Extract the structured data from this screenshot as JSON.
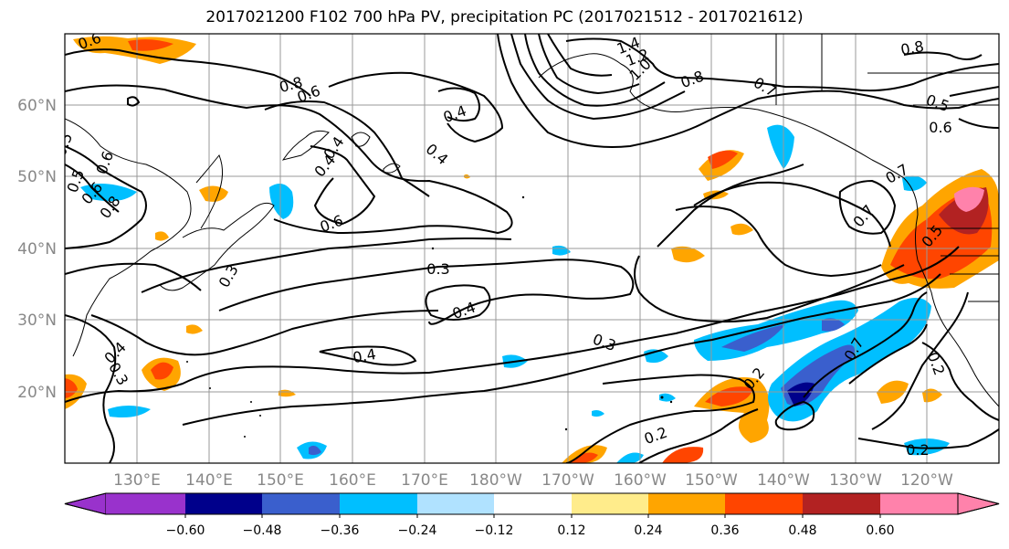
{
  "title": "2017021200 F102 700 hPa PV, precipitation PC (2017021512 - 2017021612)",
  "lat_labels": [
    "60°N",
    "50°N",
    "40°N",
    "30°N",
    "20°N"
  ],
  "lon_labels": [
    "130°E",
    "140°E",
    "150°E",
    "160°E",
    "170°E",
    "180°W",
    "170°W",
    "160°W",
    "150°W",
    "140°W",
    "130°W",
    "120°W"
  ],
  "contour_labels": [
    "0.6",
    "1.4",
    "1.2",
    "1.0",
    "0.8",
    "0.8",
    "0.7",
    "0.8",
    "0.6",
    "0.4",
    "0.5",
    "0.6",
    "0.6",
    "0.4",
    "0.5",
    "0.4",
    "0.7",
    "0.8",
    "0.6",
    "0.5",
    "0.6",
    "0.3",
    "0.4",
    "0.4",
    "0.3",
    "0.3",
    "0.2",
    "0.2",
    "0.2",
    "0.7",
    "0.4",
    "0.2",
    "0.4",
    "0.3",
    "0.7",
    "0.5"
  ],
  "colorbar": {
    "colors": [
      "#9932cc",
      "#00008b",
      "#3a5fcd",
      "#00bfff",
      "#b0e2ff",
      "#ffffff",
      "#ffec8b",
      "#ffa500",
      "#ff4500",
      "#b22222",
      "#ff82ab"
    ],
    "tick_labels": [
      "−0.60",
      "−0.48",
      "−0.36",
      "−0.24",
      "−0.12",
      "0.12",
      "0.24",
      "0.36",
      "0.48",
      "0.60"
    ]
  }
}
